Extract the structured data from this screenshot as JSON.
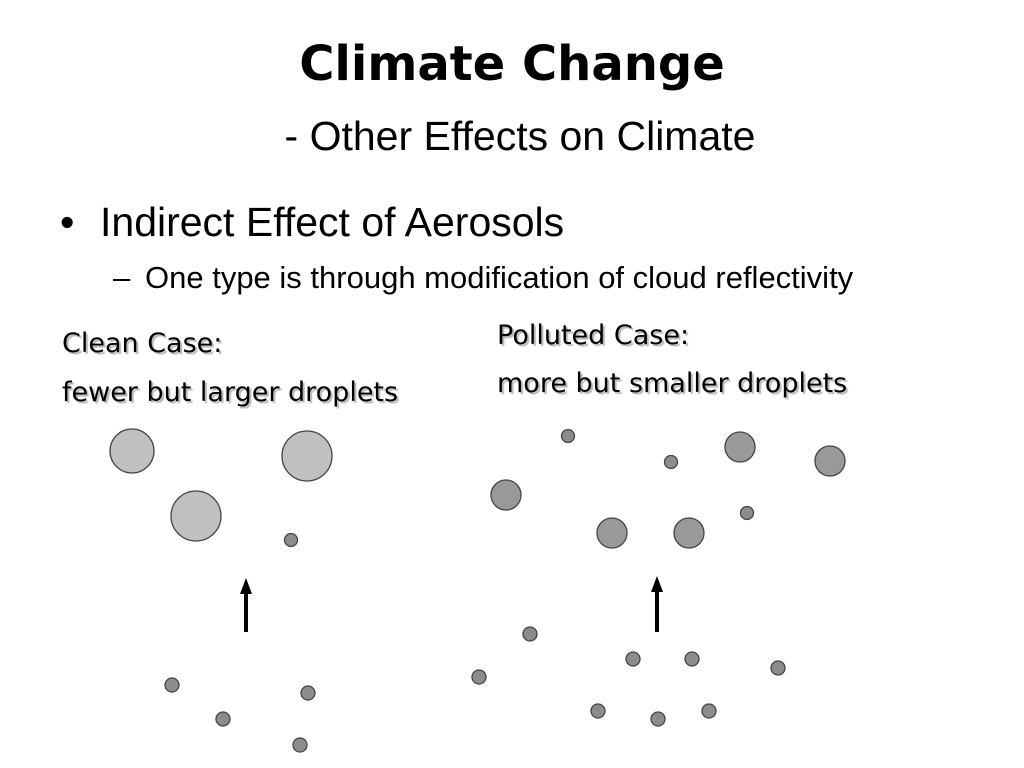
{
  "slide": {
    "title": "Climate Change",
    "subtitle": "- Other Effects on Climate",
    "bullet_marker": "•",
    "bullet": "Indirect Effect of Aerosols",
    "sub_marker": "–",
    "sub_bullet": "One type is through modification of cloud reflectivity"
  },
  "clean_case": {
    "heading": "Clean Case:",
    "description": "fewer but larger droplets"
  },
  "polluted_case": {
    "heading": "Polluted Case:",
    "description": "more but smaller droplets"
  },
  "colors": {
    "clean_droplet_fill": "#c0c0c0",
    "polluted_droplet_fill": "#999999",
    "aerosol_fill": "#8c8c8c",
    "outline": "#444444",
    "arrow": "#000000"
  }
}
